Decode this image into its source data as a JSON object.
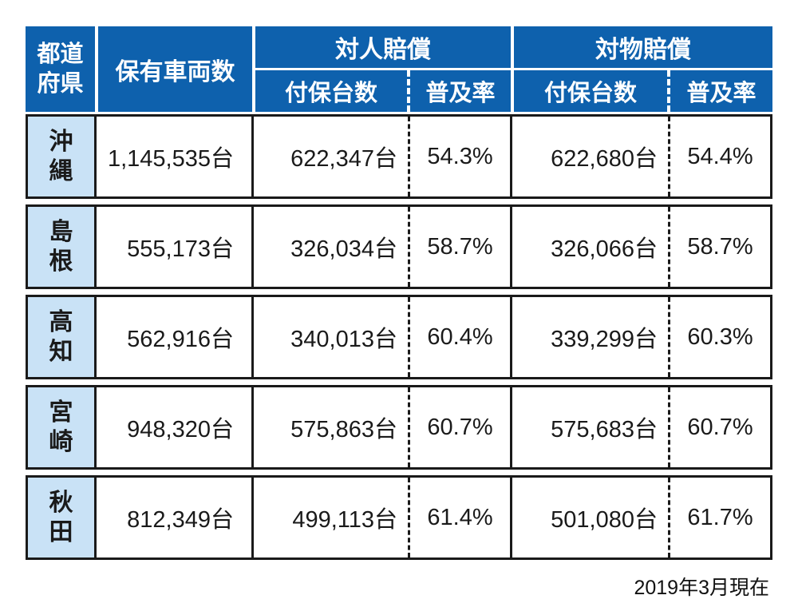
{
  "colors": {
    "header_blue": "#0e61ad",
    "pref_light_blue": "#c9e2f6",
    "border_black": "#1a1a1a"
  },
  "header": {
    "prefecture": "都道府県",
    "owned": "保有車両数",
    "taijin_group": "対人賠償",
    "taibutsu_group": "対物賠償",
    "insured": "付保台数",
    "rate": "普及率"
  },
  "footer": {
    "note": "2019年3月現在"
  },
  "chart_data": {
    "type": "table",
    "title": "",
    "columns": [
      "都道府県",
      "保有車両数",
      "対人賠償 付保台数",
      "対人賠償 普及率",
      "対物賠償 付保台数",
      "対物賠償 普及率"
    ],
    "rows": [
      [
        "沖縄",
        "1,145,535台",
        "622,347台",
        "54.3%",
        "622,680台",
        "54.4%"
      ],
      [
        "島根",
        "555,173台",
        "326,034台",
        "58.7%",
        "326,066台",
        "58.7%"
      ],
      [
        "高知",
        "562,916台",
        "340,013台",
        "60.4%",
        "339,299台",
        "60.3%"
      ],
      [
        "宮崎",
        "948,320台",
        "575,863台",
        "60.7%",
        "575,683台",
        "60.7%"
      ],
      [
        "秋田",
        "812,349台",
        "499,113台",
        "61.4%",
        "501,080台",
        "61.7%"
      ]
    ],
    "note": "2019年3月現在"
  }
}
